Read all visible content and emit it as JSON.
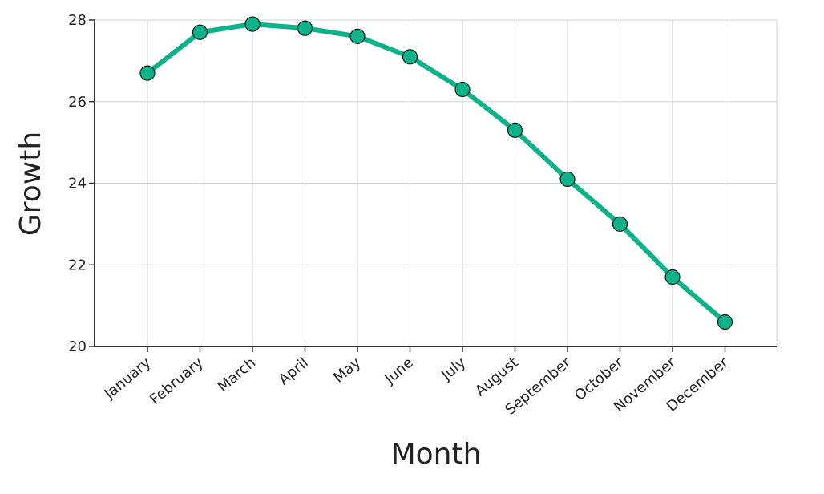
{
  "chart_data": {
    "type": "line",
    "title": "",
    "xlabel": "Month",
    "ylabel": "Growth",
    "categories": [
      "January",
      "February",
      "March",
      "April",
      "May",
      "June",
      "July",
      "August",
      "September",
      "October",
      "November",
      "December"
    ],
    "series": [
      {
        "values": [
          26.7,
          27.7,
          27.9,
          27.8,
          27.6,
          27.1,
          26.3,
          25.3,
          24.1,
          23.0,
          21.7,
          20.6
        ]
      }
    ],
    "ylim": [
      20,
      28
    ],
    "yticks": [
      20,
      22,
      24,
      26,
      28
    ],
    "grid": true,
    "colors": {
      "line": "#0bb389",
      "marker_fill": "#0bb389",
      "marker_edge": "#1a1a1a"
    }
  }
}
